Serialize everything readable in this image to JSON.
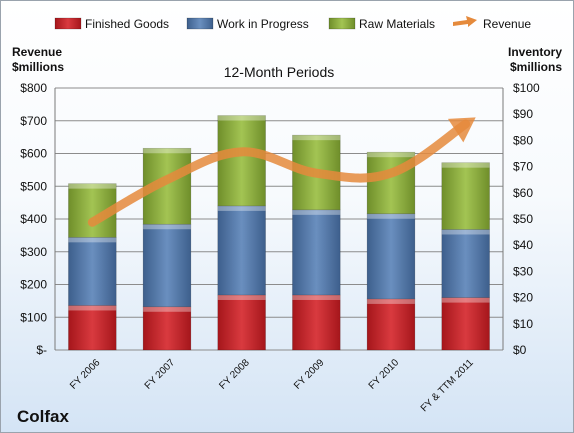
{
  "colors": {
    "finished_goods": "#c8242a",
    "work_in_progress": "#4c74a6",
    "raw_materials": "#8aab3a",
    "revenue": "#e58a3c"
  },
  "legend": [
    {
      "key": "finished_goods",
      "label": "Finished Goods",
      "icon": "bar-swatch"
    },
    {
      "key": "work_in_progress",
      "label": "Work in Progress",
      "icon": "bar-swatch"
    },
    {
      "key": "raw_materials",
      "label": "Raw Materials",
      "icon": "bar-swatch"
    },
    {
      "key": "revenue",
      "label": "Revenue",
      "icon": "arrow-swatch"
    }
  ],
  "left_axis_title": [
    "Revenue",
    "$millions"
  ],
  "right_axis_title": [
    "Inventory",
    "$millions"
  ],
  "subtitle": "12-Month Periods",
  "company": "Colfax",
  "chart_data": {
    "type": "bar",
    "stacked": true,
    "categories": [
      "FY 2006",
      "FY 2007",
      "FY 2008",
      "FY 2009",
      "FY 2010",
      "FY & TTM 2011"
    ],
    "series": [
      {
        "name": "Finished Goods",
        "key": "finished_goods",
        "axis": "right",
        "values": [
          17,
          16.5,
          21,
          21,
          19.5,
          20
        ]
      },
      {
        "name": "Work in Progress",
        "key": "work_in_progress",
        "axis": "right",
        "values": [
          26,
          31.5,
          34,
          32.5,
          32.5,
          26
        ]
      },
      {
        "name": "Raw Materials",
        "key": "raw_materials",
        "axis": "right",
        "values": [
          20.5,
          29,
          34.5,
          28.5,
          23.5,
          25.5
        ]
      },
      {
        "name": "Revenue",
        "key": "revenue",
        "axis": "left",
        "type": "line",
        "values": [
          390,
          520,
          605,
          540,
          540,
          690
        ]
      }
    ],
    "left_axis": {
      "ylim": [
        0,
        800
      ],
      "ticks": [
        0,
        100,
        200,
        300,
        400,
        500,
        600,
        700,
        800
      ],
      "tick_labels": [
        "$-",
        "$100",
        "$200",
        "$300",
        "$400",
        "$500",
        "$600",
        "$700",
        "$800"
      ]
    },
    "right_axis": {
      "ylim": [
        0,
        100
      ],
      "ticks": [
        0,
        10,
        20,
        30,
        40,
        50,
        60,
        70,
        80,
        90,
        100
      ],
      "tick_labels": [
        "$0",
        "$10",
        "$20",
        "$30",
        "$40",
        "$50",
        "$60",
        "$70",
        "$80",
        "$90",
        "$100"
      ]
    },
    "grid": true,
    "legend_position": "top"
  }
}
